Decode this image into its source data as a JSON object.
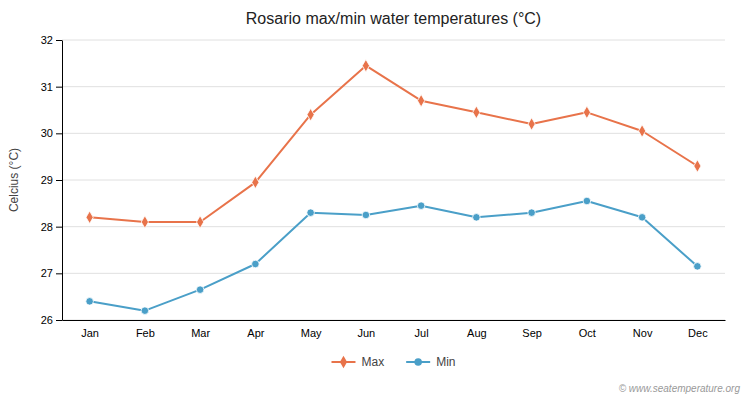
{
  "chart_data": {
    "type": "line",
    "title": "Rosario max/min water temperatures (°C)",
    "ylabel": "Celcius (°C)",
    "categories": [
      "Jan",
      "Feb",
      "Mar",
      "Apr",
      "May",
      "Jun",
      "Jul",
      "Aug",
      "Sep",
      "Oct",
      "Nov",
      "Dec"
    ],
    "series": [
      {
        "name": "Max",
        "color": "#e8734a",
        "marker": "diamond",
        "values": [
          28.2,
          28.1,
          28.1,
          28.95,
          30.4,
          31.45,
          30.7,
          30.45,
          30.2,
          30.45,
          30.05,
          29.3
        ]
      },
      {
        "name": "Min",
        "color": "#4a9fc8",
        "marker": "circle",
        "values": [
          26.4,
          26.2,
          26.65,
          27.2,
          28.3,
          28.25,
          28.45,
          28.2,
          28.3,
          28.55,
          28.2,
          27.15
        ]
      }
    ],
    "ylim": [
      26,
      32
    ],
    "yticks": [
      26,
      27,
      28,
      29,
      30,
      31,
      32
    ],
    "grid": true,
    "legend": "bottom",
    "annotations": [
      "© www.seatemperature.org"
    ]
  }
}
